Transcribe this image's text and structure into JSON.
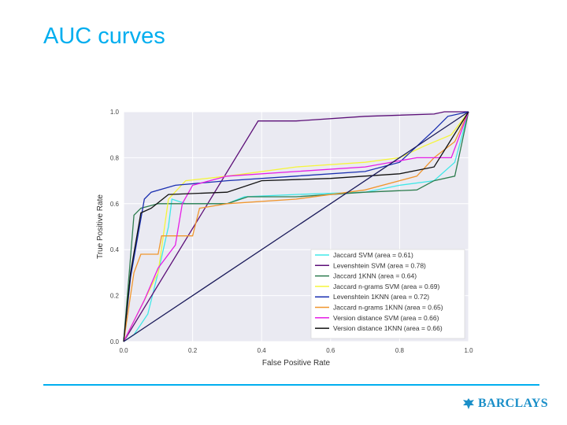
{
  "slide": {
    "title": "AUC curves",
    "brand": "BARCLAYS",
    "accent_color": "#00aeef",
    "logo_icon": "eagle-icon"
  },
  "chart_data": {
    "type": "line",
    "title": "",
    "xlabel": "False Positive Rate",
    "ylabel": "True Positive Rate",
    "xlim": [
      0.0,
      1.0
    ],
    "ylim": [
      0.0,
      1.0
    ],
    "xticks": [
      "0.0",
      "0.2",
      "0.4",
      "0.6",
      "0.8",
      "1.0"
    ],
    "yticks": [
      "0.0",
      "0.2",
      "0.4",
      "0.6",
      "0.8",
      "1.0"
    ],
    "grid": true,
    "legend_position": "bottom-right",
    "series": [
      {
        "name": "Jaccard SVM (area = 0.61)",
        "color": "#40e8e8",
        "points": [
          [
            0,
            0
          ],
          [
            0.03,
            0.03
          ],
          [
            0.07,
            0.12
          ],
          [
            0.1,
            0.3
          ],
          [
            0.13,
            0.5
          ],
          [
            0.14,
            0.62
          ],
          [
            0.18,
            0.6
          ],
          [
            0.3,
            0.6
          ],
          [
            0.35,
            0.63
          ],
          [
            0.5,
            0.64
          ],
          [
            0.7,
            0.65
          ],
          [
            0.8,
            0.68
          ],
          [
            0.9,
            0.7
          ],
          [
            0.96,
            0.78
          ],
          [
            1,
            1
          ]
        ]
      },
      {
        "name": "Levenshtein SVM (area = 0.78)",
        "color": "#5c0f78",
        "points": [
          [
            0,
            0
          ],
          [
            0.39,
            0.96
          ],
          [
            0.5,
            0.96
          ],
          [
            0.7,
            0.98
          ],
          [
            0.9,
            0.99
          ],
          [
            0.93,
            1.0
          ],
          [
            1,
            1
          ]
        ]
      },
      {
        "name": "Jaccard 1KNN (area = 0.64)",
        "color": "#2e7d4f",
        "points": [
          [
            0,
            0
          ],
          [
            0.03,
            0.55
          ],
          [
            0.05,
            0.58
          ],
          [
            0.1,
            0.6
          ],
          [
            0.3,
            0.6
          ],
          [
            0.36,
            0.63
          ],
          [
            0.5,
            0.63
          ],
          [
            0.7,
            0.65
          ],
          [
            0.85,
            0.66
          ],
          [
            0.9,
            0.7
          ],
          [
            0.96,
            0.72
          ],
          [
            1,
            1
          ]
        ]
      },
      {
        "name": "Jaccard n-grams SVM (area = 0.69)",
        "color": "#f5f53a",
        "points": [
          [
            0,
            0
          ],
          [
            0.04,
            0.12
          ],
          [
            0.06,
            0.18
          ],
          [
            0.1,
            0.3
          ],
          [
            0.13,
            0.62
          ],
          [
            0.18,
            0.7
          ],
          [
            0.3,
            0.72
          ],
          [
            0.5,
            0.76
          ],
          [
            0.7,
            0.78
          ],
          [
            0.8,
            0.8
          ],
          [
            0.87,
            0.85
          ],
          [
            0.95,
            0.9
          ],
          [
            1,
            1
          ]
        ]
      },
      {
        "name": "Levenshtein 1KNN (area = 0.72)",
        "color": "#1a2fb0",
        "points": [
          [
            0,
            0
          ],
          [
            0.02,
            0.28
          ],
          [
            0.06,
            0.62
          ],
          [
            0.08,
            0.65
          ],
          [
            0.15,
            0.68
          ],
          [
            0.3,
            0.7
          ],
          [
            0.5,
            0.72
          ],
          [
            0.7,
            0.74
          ],
          [
            0.8,
            0.78
          ],
          [
            0.85,
            0.85
          ],
          [
            0.9,
            0.92
          ],
          [
            0.94,
            0.98
          ],
          [
            1,
            1
          ]
        ]
      },
      {
        "name": "Jaccard n-grams 1KNN (area = 0.65)",
        "color": "#f0962e",
        "points": [
          [
            0,
            0
          ],
          [
            0.03,
            0.3
          ],
          [
            0.05,
            0.38
          ],
          [
            0.1,
            0.38
          ],
          [
            0.11,
            0.46
          ],
          [
            0.2,
            0.46
          ],
          [
            0.22,
            0.58
          ],
          [
            0.3,
            0.6
          ],
          [
            0.5,
            0.62
          ],
          [
            0.7,
            0.66
          ],
          [
            0.85,
            0.72
          ],
          [
            0.9,
            0.8
          ],
          [
            0.96,
            0.87
          ],
          [
            1,
            1
          ]
        ]
      },
      {
        "name": "Version distance SVM (area = 0.66)",
        "color": "#e61ee6",
        "points": [
          [
            0,
            0
          ],
          [
            0.06,
            0.18
          ],
          [
            0.1,
            0.32
          ],
          [
            0.15,
            0.42
          ],
          [
            0.17,
            0.6
          ],
          [
            0.2,
            0.68
          ],
          [
            0.3,
            0.72
          ],
          [
            0.5,
            0.74
          ],
          [
            0.7,
            0.76
          ],
          [
            0.85,
            0.8
          ],
          [
            0.95,
            0.8
          ],
          [
            1,
            1
          ]
        ]
      },
      {
        "name": "Version distance 1KNN (area = 0.66)",
        "color": "#111111",
        "points": [
          [
            0,
            0
          ],
          [
            0.02,
            0.3
          ],
          [
            0.05,
            0.56
          ],
          [
            0.08,
            0.58
          ],
          [
            0.13,
            0.64
          ],
          [
            0.3,
            0.65
          ],
          [
            0.4,
            0.7
          ],
          [
            0.6,
            0.71
          ],
          [
            0.8,
            0.73
          ],
          [
            0.9,
            0.76
          ],
          [
            1,
            1
          ]
        ]
      },
      {
        "name": "",
        "color": "#1a1a5a",
        "points": [
          [
            0,
            0
          ],
          [
            1,
            1
          ]
        ]
      }
    ]
  }
}
